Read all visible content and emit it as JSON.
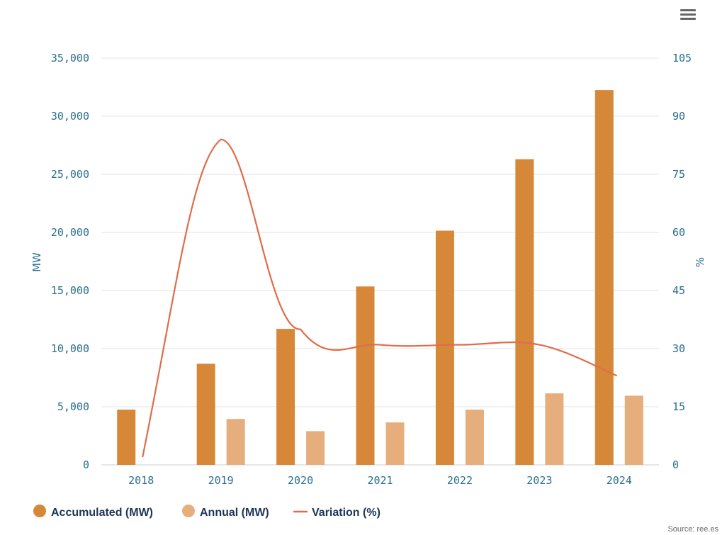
{
  "menu": {
    "icon": "hamburger-menu-icon"
  },
  "source_text": "Source: ree.es",
  "colors": {
    "accumulated": "#d68838",
    "annual": "#e6ae7c",
    "variation": "#e06c4c",
    "axis_text": "#2b6f8f",
    "grid": "#e3e3e3"
  },
  "chart_data": {
    "type": "bar",
    "categories": [
      "2018",
      "2019",
      "2020",
      "2021",
      "2022",
      "2023",
      "2024"
    ],
    "series": [
      {
        "name": "Accumulated (MW)",
        "type": "bar",
        "axis": "left",
        "values": [
          4750,
          8700,
          11700,
          15350,
          20150,
          26300,
          32250
        ]
      },
      {
        "name": "Annual (MW)",
        "type": "bar",
        "axis": "left",
        "values": [
          null,
          3950,
          2900,
          3650,
          4750,
          6150,
          5950
        ]
      },
      {
        "name": "Variation (%)",
        "type": "line",
        "axis": "right",
        "values": [
          2,
          84,
          35,
          31,
          31,
          31,
          23
        ]
      }
    ],
    "ylabel": "MW",
    "ylabel_right": "%",
    "ylim": [
      0,
      35000
    ],
    "ylim_right": [
      0,
      105
    ],
    "yticks_left": [
      "0",
      "5,000",
      "10,000",
      "15,000",
      "20,000",
      "25,000",
      "30,000",
      "35,000"
    ],
    "yticks_right": [
      "0",
      "15",
      "30",
      "45",
      "60",
      "75",
      "90",
      "105"
    ],
    "grid": true,
    "legend_position": "bottom-left"
  }
}
